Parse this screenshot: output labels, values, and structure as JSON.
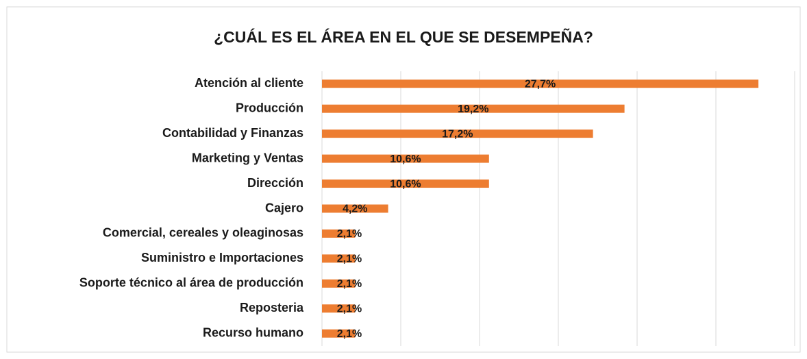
{
  "chart_data": {
    "type": "bar",
    "orientation": "horizontal",
    "title": "¿CUÁL ES EL ÁREA EN EL QUE SE DESEMPEÑA?",
    "categories": [
      "Atención al cliente",
      "Producción",
      "Contabilidad y Finanzas",
      "Marketing y Ventas",
      "Dirección",
      "Cajero",
      "Comercial, cereales y oleaginosas",
      "Suministro e Importaciones",
      "Soporte técnico al área de producción",
      "Reposteria",
      "Recurso humano"
    ],
    "values": [
      27.7,
      19.2,
      17.2,
      10.6,
      10.6,
      4.2,
      2.1,
      2.1,
      2.1,
      2.1,
      2.1
    ],
    "value_labels": [
      "27,7%",
      "19,2%",
      "17,2%",
      "10,6%",
      "10,6%",
      "4,2%",
      "2,1%",
      "2,1%",
      "2,1%",
      "2,1%",
      "2,1%"
    ],
    "color": "#ed7d31",
    "xlim": [
      0,
      30
    ],
    "xticks": [
      0,
      5,
      10,
      15,
      20,
      25,
      30
    ],
    "grid": true
  }
}
